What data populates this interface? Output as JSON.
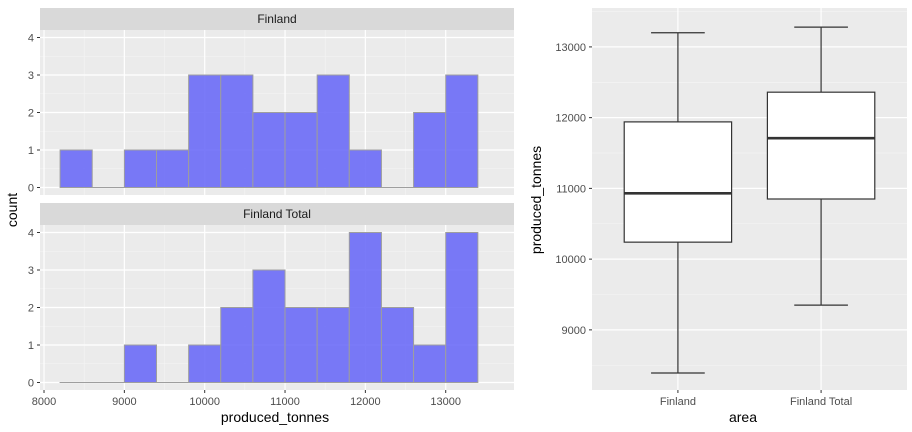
{
  "chart_data": [
    {
      "type": "histogram",
      "facet_by": "area",
      "xlabel": "produced_tonnes",
      "ylabel": "count",
      "bin_edges": [
        8200,
        8600,
        9000,
        9400,
        9800,
        10200,
        10600,
        11000,
        11400,
        11800,
        12200,
        12600,
        13000,
        13400
      ],
      "x_ticks": [
        8000,
        9000,
        10000,
        11000,
        12000,
        13000
      ],
      "y_ticks": [
        0,
        1,
        2,
        3,
        4
      ],
      "xlim": [
        7950,
        13850
      ],
      "ylim": [
        -0.2,
        4.2
      ],
      "fill_color": "#6b6bf7",
      "grid": true,
      "panels": [
        {
          "strip": "Finland",
          "counts": [
            1,
            0,
            1,
            1,
            3,
            3,
            2,
            2,
            3,
            1,
            0,
            2,
            3
          ]
        },
        {
          "strip": "Finland Total",
          "counts": [
            0,
            0,
            1,
            0,
            1,
            2,
            3,
            2,
            2,
            4,
            2,
            1,
            4
          ]
        }
      ]
    },
    {
      "type": "boxplot",
      "xlabel": "area",
      "ylabel": "produced_tonnes",
      "categories": [
        "Finland",
        "Finland Total"
      ],
      "y_ticks": [
        9000,
        10000,
        11000,
        12000,
        13000
      ],
      "ylim": [
        8150,
        13550
      ],
      "grid": true,
      "boxes": [
        {
          "category": "Finland",
          "min": 8390,
          "q1": 10240,
          "median": 10930,
          "q3": 11940,
          "max": 13200
        },
        {
          "category": "Finland Total",
          "min": 9350,
          "q1": 10850,
          "median": 11710,
          "q3": 12360,
          "max": 13280
        }
      ]
    }
  ]
}
